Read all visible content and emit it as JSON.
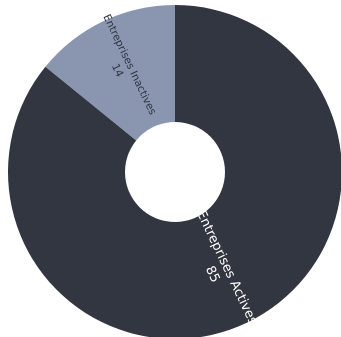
{
  "chart_data": {
    "type": "pie",
    "donut": true,
    "categories": [
      "Entreprises Actives",
      "Entreprises Inactives"
    ],
    "values": [
      85,
      14
    ],
    "colors": [
      "#323640",
      "#8a95b0"
    ],
    "label_colors": [
      "#ffffff",
      "#2f3440"
    ],
    "title": "",
    "legend": false
  }
}
